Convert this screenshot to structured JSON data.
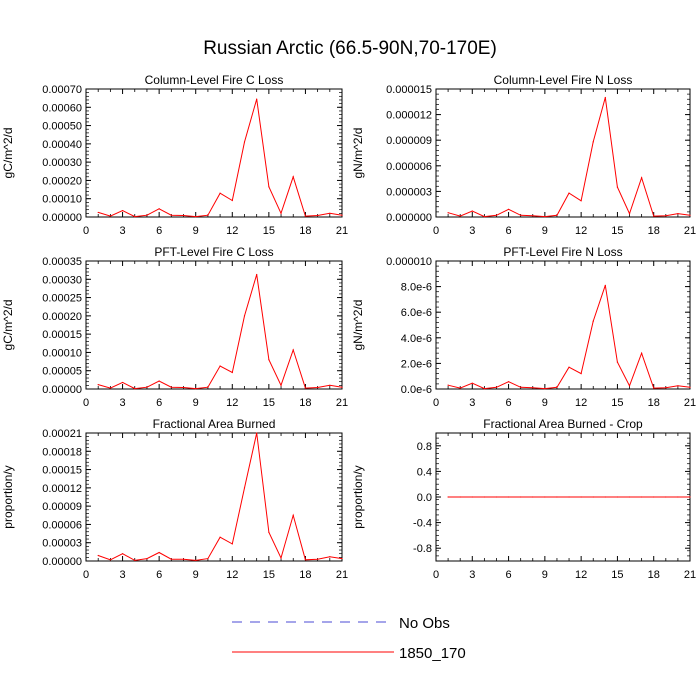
{
  "figure": {
    "title": "Russian Arctic (66.5-90N,70-170E)",
    "line_color": "#ff0000",
    "obs_color": "#4b4bd6",
    "legend": [
      {
        "label": "No Obs",
        "style": "dashed"
      },
      {
        "label": "1850_170",
        "style": "solid"
      }
    ]
  },
  "chart_data": [
    {
      "type": "line",
      "title": "Column-Level Fire C Loss",
      "xlabel": "",
      "ylabel": "gC/m^2/d",
      "xlim": [
        0,
        21
      ],
      "ylim": [
        0,
        0.0007
      ],
      "xticks": [
        0,
        3,
        6,
        9,
        12,
        15,
        18,
        21
      ],
      "xtick_labels": [
        "0",
        "3",
        "6",
        "9",
        "12",
        "15",
        "18",
        "21"
      ],
      "yticks": [
        0,
        0.0001,
        0.0002,
        0.0003,
        0.0004,
        0.0005,
        0.0006,
        0.0007
      ],
      "ytick_labels": [
        "0.00000",
        "0.00010",
        "0.00020",
        "0.00030",
        "0.00040",
        "0.00050",
        "0.00060",
        "0.00070"
      ],
      "series": [
        {
          "name": "1850_170",
          "x": [
            1,
            2,
            3,
            4,
            5,
            6,
            7,
            8,
            9,
            10,
            11,
            12,
            13,
            14,
            15,
            16,
            17,
            18,
            19,
            20,
            21
          ],
          "y": [
            2.5e-05,
            5e-06,
            3.5e-05,
            2e-06,
            1e-05,
            4.5e-05,
            1e-05,
            8e-06,
            2e-06,
            1e-05,
            0.00013,
            9e-05,
            0.00041,
            0.000645,
            0.000165,
            2e-05,
            0.00022,
            5e-06,
            8e-06,
            2e-05,
            1e-05
          ]
        }
      ]
    },
    {
      "type": "line",
      "title": "Column-Level Fire N Loss",
      "xlabel": "",
      "ylabel": "gN/m^2/d",
      "xlim": [
        0,
        21
      ],
      "ylim": [
        0,
        1.5e-05
      ],
      "xticks": [
        0,
        3,
        6,
        9,
        12,
        15,
        18,
        21
      ],
      "xtick_labels": [
        "0",
        "3",
        "6",
        "9",
        "12",
        "15",
        "18",
        "21"
      ],
      "yticks": [
        0,
        3e-06,
        6e-06,
        9e-06,
        1.2e-05,
        1.5e-05
      ],
      "ytick_labels": [
        "0.000000",
        "0.000003",
        "0.000006",
        "0.000009",
        "0.000012",
        "0.000015"
      ],
      "series": [
        {
          "name": "1850_170",
          "x": [
            1,
            2,
            3,
            4,
            5,
            6,
            7,
            8,
            9,
            10,
            11,
            12,
            13,
            14,
            15,
            16,
            17,
            18,
            19,
            20,
            21
          ],
          "y": [
            5e-07,
            1e-07,
            7e-07,
            5e-08,
            2e-07,
            9e-07,
            2e-07,
            1.5e-07,
            5e-08,
            2e-07,
            2.8e-06,
            1.9e-06,
            8.8e-06,
            1.4e-05,
            3.5e-06,
            4e-07,
            4.6e-06,
            1e-07,
            1.5e-07,
            4e-07,
            2e-07
          ]
        }
      ]
    },
    {
      "type": "line",
      "title": "PFT-Level Fire C Loss",
      "xlabel": "",
      "ylabel": "gC/m^2/d",
      "xlim": [
        0,
        21
      ],
      "ylim": [
        0,
        0.00035
      ],
      "xticks": [
        0,
        3,
        6,
        9,
        12,
        15,
        18,
        21
      ],
      "xtick_labels": [
        "0",
        "3",
        "6",
        "9",
        "12",
        "15",
        "18",
        "21"
      ],
      "yticks": [
        0,
        5e-05,
        0.0001,
        0.00015,
        0.0002,
        0.00025,
        0.0003,
        0.00035
      ],
      "ytick_labels": [
        "0.00000",
        "0.00005",
        "0.00010",
        "0.00015",
        "0.00020",
        "0.00025",
        "0.00030",
        "0.00035"
      ],
      "series": [
        {
          "name": "1850_170",
          "x": [
            1,
            2,
            3,
            4,
            5,
            6,
            7,
            8,
            9,
            10,
            11,
            12,
            13,
            14,
            15,
            16,
            17,
            18,
            19,
            20,
            21
          ],
          "y": [
            1.2e-05,
            2.5e-06,
            1.8e-05,
            1e-06,
            5e-06,
            2.2e-05,
            5e-06,
            4e-06,
            1e-06,
            5e-06,
            6.3e-05,
            4.5e-05,
            0.0002,
            0.000313,
            8e-05,
            1e-05,
            0.000107,
            2.5e-06,
            4e-06,
            1e-05,
            5e-06
          ]
        }
      ]
    },
    {
      "type": "line",
      "title": "PFT-Level Fire N Loss",
      "xlabel": "",
      "ylabel": "gN/m^2/d",
      "xlim": [
        0,
        21
      ],
      "ylim": [
        0,
        1e-05
      ],
      "xticks": [
        0,
        3,
        6,
        9,
        12,
        15,
        18,
        21
      ],
      "xtick_labels": [
        "0",
        "3",
        "6",
        "9",
        "12",
        "15",
        "18",
        "21"
      ],
      "yticks": [
        0,
        2e-06,
        4e-06,
        6e-06,
        8e-06,
        1e-05
      ],
      "ytick_labels": [
        "0.0e-6",
        "2.0e-6",
        "4.0e-6",
        "6.0e-6",
        "8.0e-6",
        "0.000010"
      ],
      "series": [
        {
          "name": "1850_170",
          "x": [
            1,
            2,
            3,
            4,
            5,
            6,
            7,
            8,
            9,
            10,
            11,
            12,
            13,
            14,
            15,
            16,
            17,
            18,
            19,
            20,
            21
          ],
          "y": [
            3e-07,
            7e-08,
            4.5e-07,
            3e-08,
            1.3e-07,
            5.7e-07,
            1.3e-07,
            1e-07,
            3e-08,
            1.3e-07,
            1.7e-06,
            1.2e-06,
            5.3e-06,
            8.1e-06,
            2.1e-06,
            2.5e-07,
            2.8e-06,
            7e-08,
            1e-07,
            2.5e-07,
            1.3e-07
          ]
        }
      ]
    },
    {
      "type": "line",
      "title": "Fractional Area Burned",
      "xlabel": "",
      "ylabel": "proportion/y",
      "xlim": [
        0,
        21
      ],
      "ylim": [
        0,
        0.00021
      ],
      "xticks": [
        0,
        3,
        6,
        9,
        12,
        15,
        18,
        21
      ],
      "xtick_labels": [
        "0",
        "3",
        "6",
        "9",
        "12",
        "15",
        "18",
        "21"
      ],
      "yticks": [
        0,
        3e-05,
        6e-05,
        9e-05,
        0.00012,
        0.00015,
        0.00018,
        0.00021
      ],
      "ytick_labels": [
        "0.00000",
        "0.00003",
        "0.00006",
        "0.00009",
        "0.00012",
        "0.00015",
        "0.00018",
        "0.00021"
      ],
      "series": [
        {
          "name": "1850_170",
          "x": [
            1,
            2,
            3,
            4,
            5,
            6,
            7,
            8,
            9,
            10,
            11,
            12,
            13,
            14,
            15,
            16,
            17,
            18,
            19,
            20,
            21
          ],
          "y": [
            9e-06,
            2e-06,
            1.2e-05,
            1e-06,
            4e-06,
            1.4e-05,
            3e-06,
            3e-06,
            1e-06,
            4e-06,
            3.9e-05,
            2.8e-05,
            0.00012,
            0.00021,
            4.7e-05,
            5e-06,
            7.5e-05,
            2e-06,
            3e-06,
            7e-06,
            4e-06
          ]
        }
      ]
    },
    {
      "type": "line",
      "title": "Fractional Area Burned - Crop",
      "xlabel": "",
      "ylabel": "proportion/y",
      "xlim": [
        0,
        21
      ],
      "ylim": [
        -1,
        1
      ],
      "xticks": [
        0,
        3,
        6,
        9,
        12,
        15,
        18,
        21
      ],
      "xtick_labels": [
        "0",
        "3",
        "6",
        "9",
        "12",
        "15",
        "18",
        "21"
      ],
      "yticks": [
        -0.8,
        -0.4,
        0,
        0.4,
        0.8
      ],
      "ytick_labels": [
        "-0.8",
        "-0.4",
        "0.0",
        "0.4",
        "0.8"
      ],
      "series": [
        {
          "name": "1850_170",
          "x": [
            1,
            2,
            3,
            4,
            5,
            6,
            7,
            8,
            9,
            10,
            11,
            12,
            13,
            14,
            15,
            16,
            17,
            18,
            19,
            20,
            21
          ],
          "y": [
            0,
            0,
            0,
            0,
            0,
            0,
            0,
            0,
            0,
            0,
            0,
            0,
            0,
            0,
            0,
            0,
            0,
            0,
            0,
            0,
            0
          ]
        }
      ]
    }
  ]
}
